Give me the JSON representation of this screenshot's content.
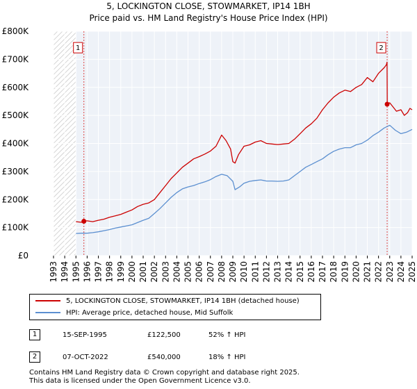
{
  "header": {
    "title_line1": "5, LOCKINGTON CLOSE, STOWMARKET, IP14 1BH",
    "title_line2": "Price paid vs. HM Land Registry's House Price Index (HPI)"
  },
  "chart_data": {
    "type": "line",
    "title": "5, LOCKINGTON CLOSE, STOWMARKET, IP14 1BH — Price paid vs. HM Land Registry's House Price Index (HPI)",
    "xlabel": "",
    "ylabel": "",
    "xlim": [
      1993,
      2025
    ],
    "ylim": [
      0,
      800000
    ],
    "x_ticks": [
      "1993",
      "1994",
      "1995",
      "1996",
      "1997",
      "1998",
      "1999",
      "2000",
      "2001",
      "2002",
      "2003",
      "2004",
      "2005",
      "2006",
      "2007",
      "2008",
      "2009",
      "2010",
      "2011",
      "2012",
      "2013",
      "2014",
      "2015",
      "2016",
      "2017",
      "2018",
      "2019",
      "2020",
      "2021",
      "2022",
      "2023",
      "2024",
      "2025"
    ],
    "y_ticks": [
      {
        "value": 0,
        "label": "£0"
      },
      {
        "value": 100000,
        "label": "£100K"
      },
      {
        "value": 200000,
        "label": "£200K"
      },
      {
        "value": 300000,
        "label": "£300K"
      },
      {
        "value": 400000,
        "label": "£400K"
      },
      {
        "value": 500000,
        "label": "£500K"
      },
      {
        "value": 600000,
        "label": "£600K"
      },
      {
        "value": 700000,
        "label": "£700K"
      },
      {
        "value": 800000,
        "label": "£800K"
      }
    ],
    "grid": true,
    "data_start": 1995.0,
    "series": [
      {
        "name": "5, LOCKINGTON CLOSE, STOWMARKET, IP14 1BH (detached house)",
        "color": "#cc0000",
        "x": [
          1995.0,
          1995.5,
          1995.71,
          1996.0,
          1996.5,
          1997.0,
          1997.5,
          1998.0,
          1998.5,
          1999.0,
          1999.5,
          2000.0,
          2000.5,
          2001.0,
          2001.5,
          2002.0,
          2002.5,
          2003.0,
          2003.5,
          2004.0,
          2004.5,
          2005.0,
          2005.5,
          2006.0,
          2006.5,
          2007.0,
          2007.5,
          2008.0,
          2008.4,
          2008.8,
          2009.0,
          2009.2,
          2009.5,
          2010.0,
          2010.5,
          2011.0,
          2011.5,
          2012.0,
          2012.5,
          2013.0,
          2013.5,
          2014.0,
          2014.5,
          2015.0,
          2015.5,
          2016.0,
          2016.5,
          2017.0,
          2017.5,
          2018.0,
          2018.5,
          2019.0,
          2019.5,
          2020.0,
          2020.5,
          2021.0,
          2021.5,
          2022.0,
          2022.5,
          2022.7,
          2022.76,
          2022.78,
          2023.0,
          2023.3,
          2023.6,
          2024.0,
          2024.3,
          2024.6,
          2024.8,
          2025.0
        ],
        "values": [
          121000,
          119000,
          122500,
          124000,
          121000,
          126000,
          130000,
          137000,
          142000,
          147000,
          155000,
          163000,
          175000,
          183000,
          188000,
          200000,
          225000,
          250000,
          275000,
          295000,
          315000,
          330000,
          345000,
          353000,
          362000,
          373000,
          390000,
          430000,
          410000,
          380000,
          335000,
          330000,
          360000,
          390000,
          395000,
          405000,
          410000,
          400000,
          398000,
          396000,
          398000,
          400000,
          415000,
          435000,
          455000,
          470000,
          490000,
          520000,
          545000,
          565000,
          580000,
          590000,
          585000,
          600000,
          610000,
          635000,
          620000,
          650000,
          670000,
          680000,
          690000,
          540000,
          545000,
          530000,
          515000,
          520000,
          500000,
          510000,
          525000,
          520000
        ]
      },
      {
        "name": "HPI: Average price, detached house, Mid Suffolk",
        "color": "#5b8fd0",
        "x": [
          1995.0,
          1995.5,
          1996.0,
          1996.5,
          1997.0,
          1997.5,
          1998.0,
          1998.5,
          1999.0,
          1999.5,
          2000.0,
          2000.5,
          2001.0,
          2001.5,
          2002.0,
          2002.5,
          2003.0,
          2003.5,
          2004.0,
          2004.5,
          2005.0,
          2005.5,
          2006.0,
          2006.5,
          2007.0,
          2007.5,
          2008.0,
          2008.5,
          2009.0,
          2009.2,
          2009.6,
          2010.0,
          2010.5,
          2011.0,
          2011.5,
          2012.0,
          2012.5,
          2013.0,
          2013.5,
          2014.0,
          2014.5,
          2015.0,
          2015.5,
          2016.0,
          2016.5,
          2017.0,
          2017.5,
          2018.0,
          2018.5,
          2019.0,
          2019.5,
          2020.0,
          2020.5,
          2021.0,
          2021.5,
          2022.0,
          2022.5,
          2023.0,
          2023.5,
          2024.0,
          2024.5,
          2025.0
        ],
        "values": [
          79000,
          80000,
          80000,
          82000,
          85000,
          89000,
          93000,
          98000,
          102000,
          106000,
          110000,
          118000,
          126000,
          133000,
          150000,
          168000,
          188000,
          208000,
          225000,
          238000,
          245000,
          250000,
          257000,
          263000,
          271000,
          282000,
          290000,
          285000,
          265000,
          235000,
          245000,
          258000,
          265000,
          268000,
          270000,
          266000,
          266000,
          265000,
          266000,
          270000,
          285000,
          300000,
          315000,
          325000,
          335000,
          345000,
          360000,
          372000,
          380000,
          385000,
          385000,
          395000,
          400000,
          412000,
          428000,
          440000,
          455000,
          465000,
          447000,
          435000,
          440000,
          450000
        ]
      }
    ],
    "annotations": [
      {
        "label": "1",
        "x": 1995.71,
        "value": 122500
      },
      {
        "label": "2",
        "x": 2022.77,
        "value": 540000
      }
    ]
  },
  "legend": {
    "items": [
      {
        "label": "5, LOCKINGTON CLOSE, STOWMARKET, IP14 1BH (detached house)",
        "color": "#cc0000"
      },
      {
        "label": "HPI: Average price, detached house, Mid Suffolk",
        "color": "#5b8fd0"
      }
    ]
  },
  "sales": [
    {
      "num": "1",
      "date": "15-SEP-1995",
      "price": "£122,500",
      "hpi": "52% ↑ HPI"
    },
    {
      "num": "2",
      "date": "07-OCT-2022",
      "price": "£540,000",
      "hpi": "18% ↑ HPI"
    }
  ],
  "footer": {
    "line1": "Contains HM Land Registry data © Crown copyright and database right 2025.",
    "line2": "This data is licensed under the Open Government Licence v3.0."
  }
}
